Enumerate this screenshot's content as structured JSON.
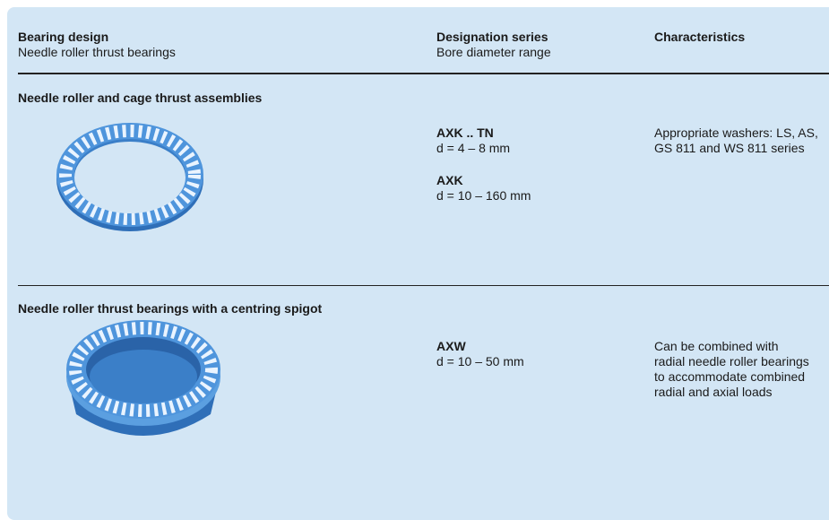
{
  "header": {
    "col1": {
      "title": "Bearing design",
      "subtitle": "Needle roller thrust bearings"
    },
    "col2": {
      "title": "Designation series",
      "subtitle": "Bore diameter range"
    },
    "col3": {
      "title": "Characteristics"
    }
  },
  "sections": [
    {
      "title": "Needle roller and cage thrust assemblies",
      "designations": [
        {
          "series": "AXK .. TN",
          "range": "d = 4 – 8 mm"
        },
        {
          "series": "AXK",
          "range": "d = 10 – 160 mm"
        }
      ],
      "characteristics": "Appropriate washers: LS, AS, GS 811 and WS 811 series"
    },
    {
      "title": "Needle roller thrust bearings with a centring spigot",
      "designations": [
        {
          "series": "AXW",
          "range": "d = 10 – 50 mm"
        }
      ],
      "characteristics": "Can be combined with radial needle roller bearings to accommodate combined radial and axial loads"
    }
  ]
}
